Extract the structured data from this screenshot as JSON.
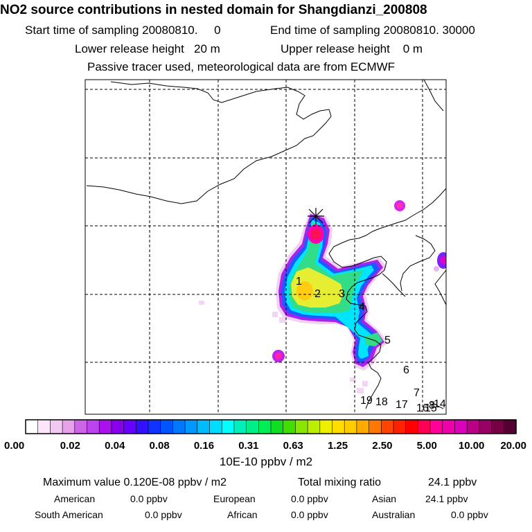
{
  "header": {
    "title": "NO2 source contributions in nested domain for Shangdianzi_200808",
    "line1_start": "Start time of sampling 20080810.     0",
    "line1_end": "End time of sampling 20080810. 30000",
    "line2_lower": "Lower release height   20 m",
    "line2_upper": "Upper release height    0 m",
    "line3": "Passive tracer used, meteorological data are from ECMWF"
  },
  "colors": {
    "grid": "#000000",
    "plume_magenta": "#ff00cc",
    "plume_purple": "#9900ff",
    "plume_blue": "#0055ff",
    "plume_cyan": "#00e5ff",
    "plume_green": "#33dd88",
    "plume_yellow": "#e6ee33",
    "plume_light": "#f2d0f2"
  },
  "chart_data": {
    "type": "heatmap",
    "title": "NO2 source contributions in nested domain for Shangdianzi_200808",
    "receptor": "Shangdianzi",
    "colorbar": {
      "unit_label": "10E-10 ppbv / m2",
      "tick_labels": [
        "0.00",
        "0.02",
        "0.04",
        "0.08",
        "0.16",
        "0.31",
        "0.63",
        "1.25",
        "2.50",
        "5.00",
        "10.00",
        "20.00"
      ],
      "bins": [
        "#ffffff",
        "#fbe6fb",
        "#f2c9f2",
        "#e6a3ec",
        "#cc66e6",
        "#bb44ee",
        "#aa11ee",
        "#8800ee",
        "#6600ff",
        "#3311ff",
        "#1133ff",
        "#0055ff",
        "#0077ff",
        "#0099ff",
        "#00bbff",
        "#00ddff",
        "#00ffff",
        "#00eebb",
        "#00ee88",
        "#00ee55",
        "#11dd22",
        "#44dd00",
        "#88e600",
        "#bbee00",
        "#eeee00",
        "#ffdd00",
        "#ffcc00",
        "#ffaa00",
        "#ff7700",
        "#ff4400",
        "#ff2200",
        "#ff0000",
        "#ff0055",
        "#ff0099",
        "#ee00aa",
        "#dd00bb",
        "#bb0088",
        "#990066",
        "#770044",
        "#550033"
      ]
    },
    "source_markers": [
      {
        "label": "1"
      },
      {
        "label": "2"
      },
      {
        "label": "3"
      },
      {
        "label": "4"
      },
      {
        "label": "5"
      },
      {
        "label": "6"
      },
      {
        "label": "7"
      },
      {
        "label": "17"
      },
      {
        "label": "18"
      },
      {
        "label": "19"
      },
      {
        "label": "16"
      },
      {
        "label": "15"
      },
      {
        "label": "14"
      },
      {
        "label": "8"
      }
    ]
  },
  "stats": {
    "max_label": "Maximum value  0.120E-08 ppbv / m2",
    "total_label": "Total mixing ratio",
    "total_value": "24.1 ppbv",
    "american_label": "American",
    "american_value": "0.0 ppbv",
    "european_label": "European",
    "european_value": "0.0 ppbv",
    "asian_label": "Asian",
    "asian_value": "24.1 ppbv",
    "south_american_label": "South American",
    "south_american_value": "0.0 ppbv",
    "african_label": "African",
    "african_value": "0.0 ppbv",
    "australian_label": "Australian",
    "australian_value": "0.0 ppbv"
  }
}
